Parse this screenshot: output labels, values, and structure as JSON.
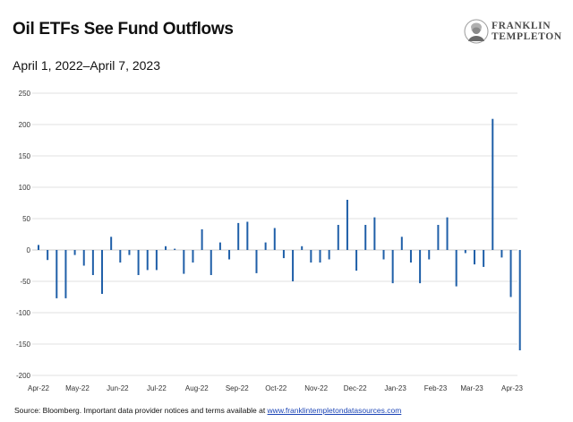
{
  "title": "Oil ETFs See Fund Outflows",
  "subtitle": "April 1, 2022–April 7, 2023",
  "logo": {
    "line1": "FRANKLIN",
    "line2": "TEMPLETON",
    "icon": "franklin-portrait-icon"
  },
  "source": {
    "prefix": "Source: Bloomberg. Important data provider notices and terms available at ",
    "link": "www.franklintempletondatasources.com"
  },
  "colors": {
    "bar": "#1f5fa8",
    "grid": "#d9d9d9",
    "text": "#111111",
    "link": "#1a43b5"
  },
  "chart_data": {
    "type": "bar",
    "title": "Oil ETFs See Fund Outflows",
    "xlabel": "",
    "ylabel": "",
    "ylim": [
      -200,
      250
    ],
    "yticks": [
      -200,
      -150,
      -100,
      -50,
      0,
      50,
      100,
      150,
      200,
      250
    ],
    "xtick_labels": [
      "Apr-22",
      "May-22",
      "Jun-22",
      "Jul-22",
      "Aug-22",
      "Sep-22",
      "Oct-22",
      "Nov-22",
      "Dec-22",
      "Jan-23",
      "Feb-23",
      "Mar-23",
      "Apr-23"
    ],
    "xtick_dates": [
      "2022-04-01",
      "2022-05-01",
      "2022-06-01",
      "2022-07-01",
      "2022-08-01",
      "2022-09-01",
      "2022-10-01",
      "2022-11-01",
      "2022-12-01",
      "2023-01-01",
      "2023-02-01",
      "2023-03-01",
      "2023-04-01"
    ],
    "grid": true,
    "series": [
      {
        "dates": [
          "2022-04-01",
          "2022-04-08",
          "2022-04-15",
          "2022-04-22",
          "2022-04-29",
          "2022-05-06",
          "2022-05-13",
          "2022-05-20",
          "2022-05-27",
          "2022-06-03",
          "2022-06-10",
          "2022-06-17",
          "2022-06-24",
          "2022-07-01",
          "2022-07-08",
          "2022-07-15",
          "2022-07-22",
          "2022-07-29",
          "2022-08-05",
          "2022-08-12",
          "2022-08-19",
          "2022-08-26",
          "2022-09-02",
          "2022-09-09",
          "2022-09-16",
          "2022-09-23",
          "2022-09-30",
          "2022-10-07",
          "2022-10-14",
          "2022-10-21",
          "2022-10-28",
          "2022-11-04",
          "2022-11-11",
          "2022-11-18",
          "2022-11-25",
          "2022-12-02",
          "2022-12-09",
          "2022-12-16",
          "2022-12-23",
          "2022-12-30",
          "2023-01-06",
          "2023-01-13",
          "2023-01-20",
          "2023-01-27",
          "2023-02-03",
          "2023-02-10",
          "2023-02-17",
          "2023-02-24",
          "2023-03-03",
          "2023-03-10",
          "2023-03-17",
          "2023-03-24",
          "2023-03-31",
          "2023-04-07"
        ],
        "values": [
          8,
          -16,
          -77,
          -77,
          -8,
          -25,
          -40,
          -70,
          21,
          -20,
          -8,
          -40,
          -32,
          -32,
          6,
          2,
          -38,
          -20,
          33,
          -40,
          12,
          -15,
          43,
          45,
          -37,
          12,
          35,
          -13,
          -50,
          6,
          -20,
          -20,
          -15,
          40,
          80,
          -33,
          40,
          52,
          -15,
          -53,
          21,
          -20,
          -53,
          -15,
          40,
          52,
          -58,
          -5,
          -23,
          -27,
          209,
          -12,
          -75,
          -160
        ]
      }
    ]
  }
}
